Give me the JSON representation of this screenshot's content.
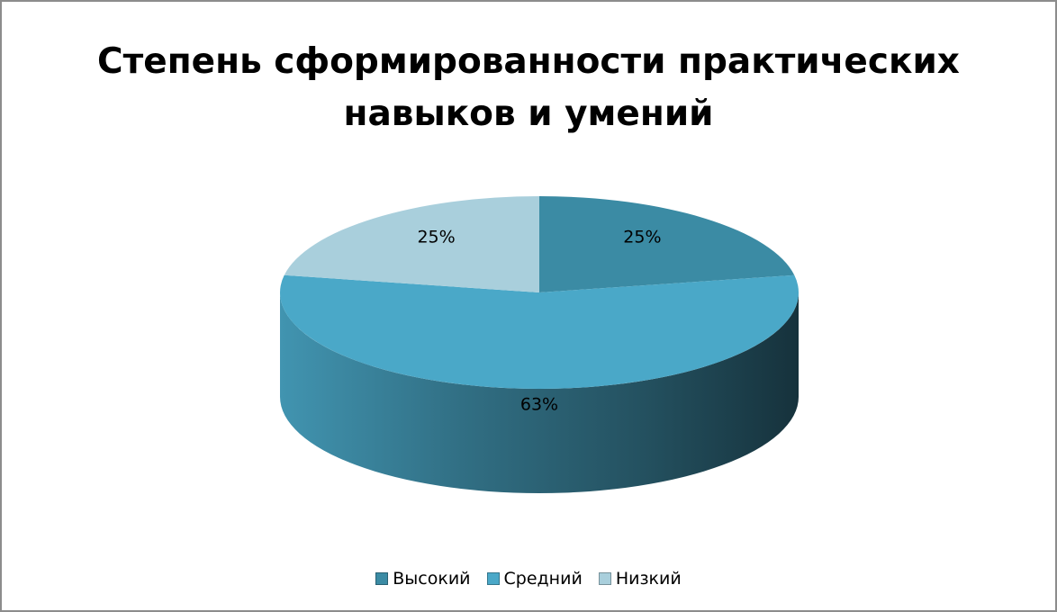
{
  "chart_data": {
    "type": "pie",
    "title": "Степень сформированности практических навыков и умений",
    "categories": [
      "Высокий",
      "Средний",
      "Низкий"
    ],
    "values": [
      25,
      63,
      25
    ],
    "labels": [
      "25%",
      "63%",
      "25%"
    ],
    "colors": [
      "#3b8ba4",
      "#4aa8c8",
      "#a9cfdc"
    ],
    "legend_position": "bottom"
  }
}
